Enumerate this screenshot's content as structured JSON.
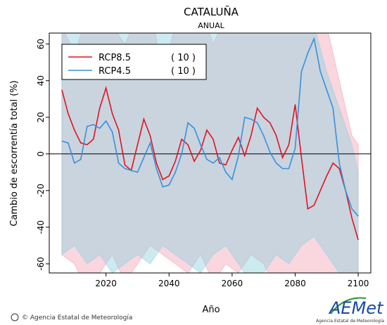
{
  "chart_data": {
    "type": "line",
    "title": "CATALUÑA",
    "subtitle": "ANUAL",
    "ylabel": "Cambio de escorrentía total (%)",
    "xlabel": "Año",
    "xlim": [
      2002,
      2104
    ],
    "ylim": [
      -65,
      66
    ],
    "xticks": [
      2020,
      2040,
      2060,
      2080,
      2100
    ],
    "yticks": [
      -60,
      -40,
      -20,
      0,
      20,
      40,
      60
    ],
    "hline": 0,
    "legend": "upper left",
    "x": [
      2006,
      2008,
      2010,
      2012,
      2014,
      2016,
      2018,
      2020,
      2022,
      2024,
      2026,
      2028,
      2030,
      2032,
      2034,
      2036,
      2038,
      2040,
      2042,
      2044,
      2046,
      2048,
      2050,
      2052,
      2054,
      2056,
      2058,
      2060,
      2062,
      2064,
      2066,
      2068,
      2070,
      2072,
      2074,
      2076,
      2078,
      2080,
      2082,
      2084,
      2086,
      2088,
      2090,
      2092,
      2094,
      2096,
      2098,
      2100
    ],
    "series": [
      {
        "name": "RCP8.5",
        "legend_note": "( 10 )",
        "color": "#e0141e",
        "band_color": "#f5a3b5",
        "values": [
          35,
          22,
          13,
          6,
          5,
          8,
          25,
          36,
          22,
          13,
          -6,
          -9,
          5,
          19,
          10,
          -5,
          -14,
          -12,
          -4,
          8,
          5,
          -4,
          2,
          13,
          8,
          -5,
          -6,
          2,
          9,
          -1,
          10,
          25,
          20,
          17,
          10,
          -2,
          5,
          27,
          -2,
          -30,
          -28,
          -20,
          -12,
          -5,
          -8,
          -20,
          -35,
          -47
        ],
        "band": {
          "x": [
            2006,
            2010,
            2014,
            2018,
            2022,
            2026,
            2030,
            2034,
            2038,
            2042,
            2046,
            2050,
            2054,
            2058,
            2062,
            2066,
            2070,
            2074,
            2078,
            2082,
            2086,
            2090,
            2094,
            2098,
            2100
          ],
          "upper": [
            70,
            55,
            75,
            80,
            70,
            60,
            75,
            80,
            45,
            70,
            75,
            80,
            60,
            75,
            80,
            80,
            75,
            80,
            80,
            85,
            90,
            70,
            40,
            10,
            5
          ],
          "lower": [
            -55,
            -60,
            -75,
            -65,
            -55,
            -70,
            -60,
            -50,
            -55,
            -60,
            -65,
            -55,
            -70,
            -60,
            -65,
            -55,
            -60,
            -75,
            -65,
            -70,
            -80,
            -75,
            -70,
            -80,
            -80
          ]
        }
      },
      {
        "name": "RCP4.5",
        "legend_note": "( 10 )",
        "color": "#3a8fdc",
        "band_color": "#8fd3df",
        "values": [
          7,
          6,
          -5,
          -3,
          15,
          16,
          14,
          18,
          12,
          -5,
          -8,
          -9,
          -10,
          -2,
          6,
          -8,
          -18,
          -17,
          -10,
          0,
          17,
          14,
          5,
          -3,
          -5,
          -2,
          -10,
          -14,
          -1,
          20,
          19,
          17,
          10,
          1,
          -5,
          -8,
          -8,
          3,
          45,
          55,
          63,
          45,
          35,
          25,
          -5,
          -20,
          -30,
          -34
        ],
        "band": {
          "x": [
            2006,
            2010,
            2014,
            2018,
            2022,
            2026,
            2030,
            2034,
            2038,
            2042,
            2046,
            2050,
            2054,
            2058,
            2062,
            2066,
            2070,
            2074,
            2078,
            2082,
            2086,
            2090,
            2094,
            2098,
            2100
          ],
          "upper": [
            65,
            80,
            70,
            75,
            80,
            70,
            75,
            80,
            70,
            75,
            80,
            75,
            70,
            80,
            75,
            70,
            80,
            85,
            90,
            80,
            70,
            45,
            25,
            5,
            -10
          ],
          "lower": [
            -55,
            -50,
            -60,
            -55,
            -65,
            -60,
            -55,
            -60,
            -50,
            -55,
            -60,
            -65,
            -55,
            -50,
            -60,
            -70,
            -65,
            -55,
            -60,
            -50,
            -45,
            -55,
            -65,
            -70,
            -65
          ]
        }
      }
    ],
    "footer": "© Agencia Estatal de Meteorología",
    "logo": {
      "text": "AEMet",
      "subtitle": "Agencia Estatal de Meteorología"
    }
  }
}
